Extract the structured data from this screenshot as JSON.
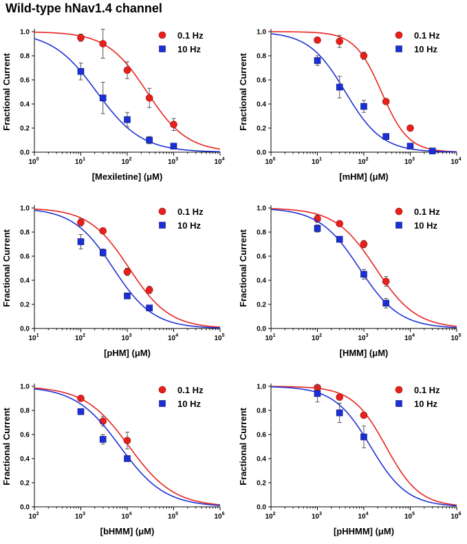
{
  "title": "Wild-type hNav1.4 channel",
  "colors": {
    "s01": "#e8201c",
    "s10": "#1c2fd6",
    "error": "#555555",
    "axis": "#000000"
  },
  "chart_data": [
    {
      "type": "scatter",
      "xscale": "log",
      "xlim": [
        1,
        10000
      ],
      "ylim": [
        0,
        1.0
      ],
      "xlabel": "[Mexiletine] (μM)",
      "ylabel": "Fractional Current",
      "xticks": [
        {
          "v": 1,
          "base": "10",
          "exp": "0"
        },
        {
          "v": 10,
          "base": "10",
          "exp": "1"
        },
        {
          "v": 100,
          "base": "10",
          "exp": "2"
        },
        {
          "v": 1000,
          "base": "10",
          "exp": "3"
        },
        {
          "v": 10000,
          "base": "10",
          "exp": "4"
        }
      ],
      "yticks": [
        "0.0",
        "0.2",
        "0.4",
        "0.6",
        "0.8",
        "1.0"
      ],
      "legend_position": "top-right",
      "series": [
        {
          "name": "0.1 Hz",
          "marker": "circle",
          "x": [
            10,
            30,
            100,
            300,
            1000
          ],
          "y": [
            0.95,
            0.9,
            0.68,
            0.45,
            0.23
          ],
          "err": [
            0.03,
            0.12,
            0.07,
            0.08,
            0.05
          ],
          "fit": {
            "ic50": 266,
            "h": 1.0
          }
        },
        {
          "name": "10 Hz",
          "marker": "square",
          "x": [
            10,
            30,
            100,
            300,
            1000
          ],
          "y": [
            0.67,
            0.45,
            0.27,
            0.1,
            0.05
          ],
          "err": [
            0.07,
            0.13,
            0.06,
            0.03,
            0.01
          ],
          "fit": {
            "ic50": 22,
            "h": 0.9
          }
        }
      ]
    },
    {
      "type": "scatter",
      "xscale": "log",
      "xlim": [
        1,
        10000
      ],
      "ylim": [
        0,
        1.0
      ],
      "xlabel": "[mHM] (μM)",
      "ylabel": "Fractional Current",
      "xticks": [
        {
          "v": 1,
          "base": "10",
          "exp": "0"
        },
        {
          "v": 10,
          "base": "10",
          "exp": "1"
        },
        {
          "v": 100,
          "base": "10",
          "exp": "2"
        },
        {
          "v": 1000,
          "base": "10",
          "exp": "3"
        },
        {
          "v": 10000,
          "base": "10",
          "exp": "4"
        }
      ],
      "yticks": [
        "0.0",
        "0.2",
        "0.4",
        "0.6",
        "0.8",
        "1.0"
      ],
      "legend_position": "top-right",
      "series": [
        {
          "name": "0.1 Hz",
          "marker": "circle",
          "x": [
            10,
            30,
            100,
            300,
            1000
          ],
          "y": [
            0.93,
            0.92,
            0.8,
            0.42,
            0.2
          ],
          "err": [
            0.0,
            0.05,
            0.03,
            0.0,
            0.0
          ],
          "fit": {
            "ic50": 240,
            "h": 1.5
          }
        },
        {
          "name": "10 Hz",
          "marker": "square",
          "x": [
            10,
            30,
            100,
            300,
            1000,
            3000
          ],
          "y": [
            0.76,
            0.54,
            0.38,
            0.13,
            0.05,
            0.01
          ],
          "err": [
            0.04,
            0.09,
            0.05,
            0.02,
            0.01,
            0.0
          ],
          "fit": {
            "ic50": 40,
            "h": 1.1
          }
        }
      ]
    },
    {
      "type": "scatter",
      "xscale": "log",
      "xlim": [
        10,
        100000
      ],
      "ylim": [
        0,
        1.0
      ],
      "xlabel": "[pHM] (μM)",
      "ylabel": "Fractional Current",
      "xticks": [
        {
          "v": 10,
          "base": "10",
          "exp": "1"
        },
        {
          "v": 100,
          "base": "10",
          "exp": "2"
        },
        {
          "v": 1000,
          "base": "10",
          "exp": "3"
        },
        {
          "v": 10000,
          "base": "10",
          "exp": "4"
        },
        {
          "v": 100000,
          "base": "10",
          "exp": "5"
        }
      ],
      "yticks": [
        "0.0",
        "0.2",
        "0.4",
        "0.6",
        "0.8",
        "1.0"
      ],
      "legend_position": "top-right",
      "series": [
        {
          "name": "0.1 Hz",
          "marker": "circle",
          "x": [
            100,
            300,
            1000,
            3000
          ],
          "y": [
            0.88,
            0.81,
            0.47,
            0.32
          ],
          "err": [
            0.03,
            0.0,
            0.03,
            0.03
          ],
          "fit": {
            "ic50": 1100,
            "h": 1.0
          }
        },
        {
          "name": "10 Hz",
          "marker": "square",
          "x": [
            100,
            300,
            1000,
            3000
          ],
          "y": [
            0.72,
            0.63,
            0.27,
            0.17
          ],
          "err": [
            0.06,
            0.03,
            0.0,
            0.0
          ],
          "fit": {
            "ic50": 500,
            "h": 1.0
          }
        }
      ]
    },
    {
      "type": "scatter",
      "xscale": "log",
      "xlim": [
        10,
        100000
      ],
      "ylim": [
        0,
        1.0
      ],
      "xlabel": "[HMM] (μM)",
      "ylabel": "Fractional Current",
      "xticks": [
        {
          "v": 10,
          "base": "10",
          "exp": "1"
        },
        {
          "v": 100,
          "base": "10",
          "exp": "2"
        },
        {
          "v": 1000,
          "base": "10",
          "exp": "3"
        },
        {
          "v": 10000,
          "base": "10",
          "exp": "4"
        },
        {
          "v": 100000,
          "base": "10",
          "exp": "5"
        }
      ],
      "yticks": [
        "0.0",
        "0.2",
        "0.4",
        "0.6",
        "0.8",
        "1.0"
      ],
      "legend_position": "top-right",
      "series": [
        {
          "name": "0.1 Hz",
          "marker": "circle",
          "x": [
            100,
            300,
            1000,
            3000
          ],
          "y": [
            0.91,
            0.87,
            0.7,
            0.39
          ],
          "err": [
            0.03,
            0.0,
            0.03,
            0.04
          ],
          "fit": {
            "ic50": 1800,
            "h": 1.0
          }
        },
        {
          "name": "10 Hz",
          "marker": "square",
          "x": [
            100,
            300,
            1000,
            3000
          ],
          "y": [
            0.83,
            0.74,
            0.45,
            0.21
          ],
          "err": [
            0.03,
            0.0,
            0.04,
            0.04
          ],
          "fit": {
            "ic50": 800,
            "h": 1.0
          }
        }
      ]
    },
    {
      "type": "scatter",
      "xscale": "log",
      "xlim": [
        100,
        1000000
      ],
      "ylim": [
        0,
        1.0
      ],
      "xlabel": "[bHMM] (μM)",
      "ylabel": "Fractional Current",
      "xticks": [
        {
          "v": 100,
          "base": "10",
          "exp": "2"
        },
        {
          "v": 1000,
          "base": "10",
          "exp": "3"
        },
        {
          "v": 10000,
          "base": "10",
          "exp": "4"
        },
        {
          "v": 100000,
          "base": "10",
          "exp": "5"
        },
        {
          "v": 1000000,
          "base": "10",
          "exp": "6"
        }
      ],
      "yticks": [
        "0.0",
        "0.2",
        "0.4",
        "0.6",
        "0.8",
        "1.0"
      ],
      "legend_position": "top-right",
      "series": [
        {
          "name": "0.1 Hz",
          "marker": "circle",
          "x": [
            1000,
            3000,
            10000
          ],
          "y": [
            0.9,
            0.71,
            0.55
          ],
          "err": [
            0.0,
            0.04,
            0.07
          ],
          "fit": {
            "ic50": 11000,
            "h": 0.9
          }
        },
        {
          "name": "10 Hz",
          "marker": "square",
          "x": [
            1000,
            3000,
            10000
          ],
          "y": [
            0.79,
            0.56,
            0.4
          ],
          "err": [
            0.0,
            0.04,
            0.0
          ],
          "fit": {
            "ic50": 7000,
            "h": 0.9
          }
        }
      ]
    },
    {
      "type": "scatter",
      "xscale": "log",
      "xlim": [
        100,
        1000000
      ],
      "ylim": [
        0,
        1.0
      ],
      "xlabel": "[pHHMM] (μM)",
      "ylabel": "Fractional Current",
      "xticks": [
        {
          "v": 100,
          "base": "10",
          "exp": "2"
        },
        {
          "v": 1000,
          "base": "10",
          "exp": "3"
        },
        {
          "v": 10000,
          "base": "10",
          "exp": "4"
        },
        {
          "v": 100000,
          "base": "10",
          "exp": "5"
        },
        {
          "v": 1000000,
          "base": "10",
          "exp": "6"
        }
      ],
      "yticks": [
        "0.0",
        "0.2",
        "0.4",
        "0.6",
        "0.8",
        "1.0"
      ],
      "legend_position": "top-right",
      "series": [
        {
          "name": "0.1 Hz",
          "marker": "circle",
          "x": [
            1000,
            3000,
            10000
          ],
          "y": [
            0.99,
            0.91,
            0.76
          ],
          "err": [
            0.0,
            0.0,
            0.0
          ],
          "fit": {
            "ic50": 30000,
            "h": 1.2
          }
        },
        {
          "name": "10 Hz",
          "marker": "square",
          "x": [
            1000,
            3000,
            10000
          ],
          "y": [
            0.94,
            0.78,
            0.58
          ],
          "err": [
            0.07,
            0.08,
            0.09
          ],
          "fit": {
            "ic50": 14000,
            "h": 1.1
          }
        }
      ]
    }
  ]
}
